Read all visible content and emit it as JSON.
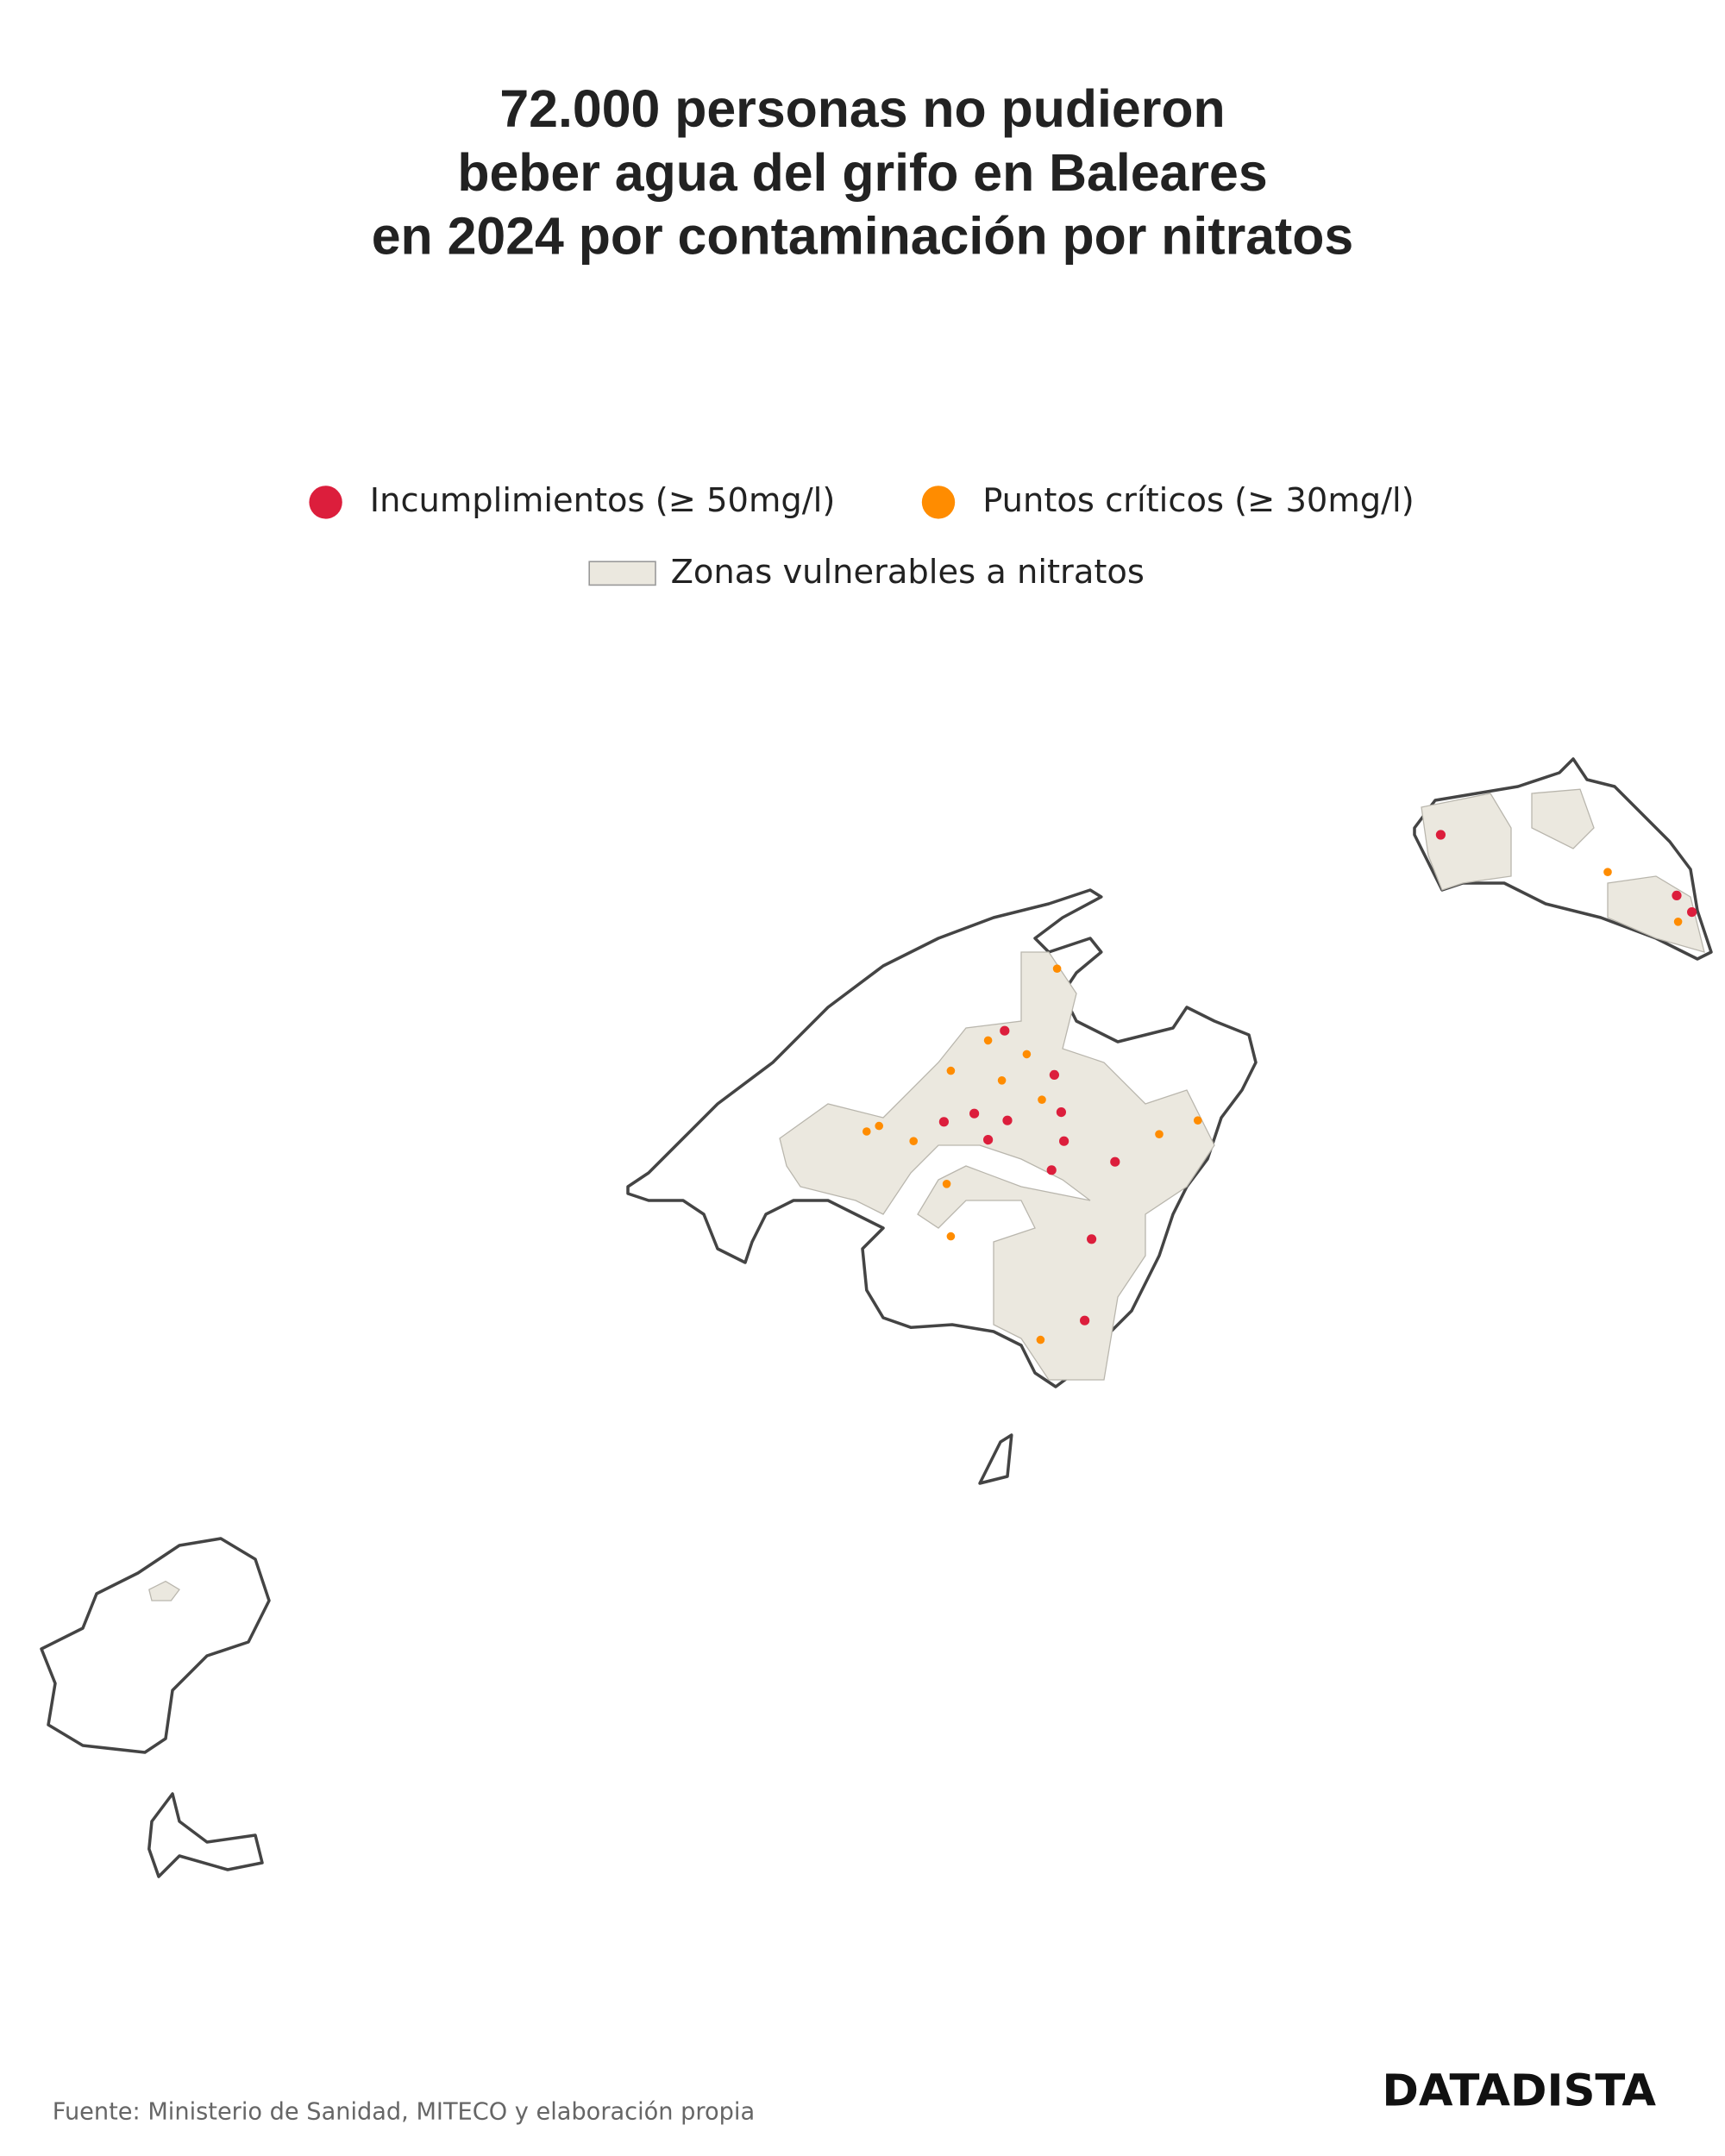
{
  "header": {
    "title_lines": [
      "72.000 personas no pudieron",
      "beber agua del grifo en Baleares",
      "en 2024 por contaminación por nitratos"
    ]
  },
  "legend": {
    "items": [
      "Incumplimientos (≥ 50mg/l)",
      "Puntos críticos (≥ 30mg/l)",
      "Zonas vulnerables a nitratos"
    ]
  },
  "footer": {
    "source": "Fuente: Ministerio de Sanidad, MITECO y elaboración propia",
    "logo": "DATADISTA"
  }
}
